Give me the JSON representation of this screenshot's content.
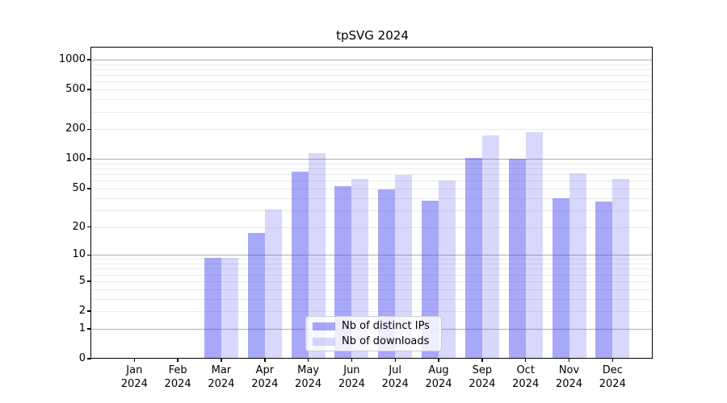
{
  "chart_data": {
    "type": "bar",
    "title": "tpSVG 2024",
    "categories": [
      "Jan",
      "Feb",
      "Mar",
      "Apr",
      "May",
      "Jun",
      "Jul",
      "Aug",
      "Sep",
      "Oct",
      "Nov",
      "Dec"
    ],
    "x_tick_year": "2024",
    "series": [
      {
        "name": "Nb of distinct IPs",
        "color_hex": "#4646f0",
        "alpha": 0.47,
        "color": "rgba(70,70,240,0.47)",
        "values": [
          0,
          0,
          9,
          17,
          73,
          52,
          48,
          37,
          101,
          98,
          39,
          36
        ]
      },
      {
        "name": "Nb of downloads",
        "color_hex": "#4646f0",
        "alpha": 0.21,
        "color": "rgba(70,70,240,0.21)",
        "values": [
          0,
          0,
          9,
          30,
          112,
          61,
          67,
          59,
          170,
          182,
          70,
          61
        ]
      }
    ],
    "y_scale": "log1p",
    "y_ticks": [
      0,
      1,
      2,
      5,
      10,
      20,
      50,
      100,
      200,
      500,
      1000
    ],
    "y_major_gridlines": [
      1,
      10,
      100,
      1000
    ],
    "y_minor_gridline_mantissas": [
      2,
      3,
      4,
      5,
      6,
      7,
      8,
      9
    ],
    "ylim": [
      0,
      1320
    ],
    "grid": true,
    "legend_position": "lower center",
    "colors": {
      "major_grid": "#b0b0b0",
      "minor_grid": "#ebebeb",
      "spine": "#000000",
      "legend_border": "#cccccc"
    }
  }
}
